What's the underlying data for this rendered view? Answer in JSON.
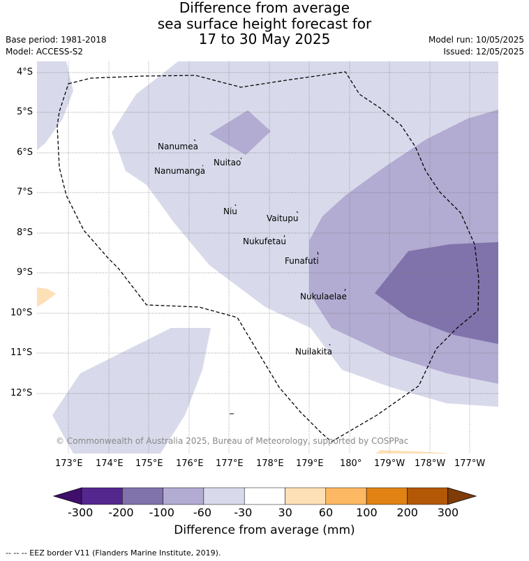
{
  "title": {
    "line1": "Difference from average",
    "line2": "sea surface height forecast for",
    "line3": "17 to 30 May 2025"
  },
  "meta": {
    "base_period": "Base period: 1981-2018",
    "model": "Model: ACCESS-S2",
    "model_run": "Model run: 10/05/2025",
    "issued": "Issued: 12/05/2025"
  },
  "map": {
    "latitude_labels": [
      "4°S",
      "5°S",
      "6°S",
      "7°S",
      "8°S",
      "9°S",
      "10°S",
      "11°S",
      "12°S"
    ],
    "longitude_labels": [
      "173°E",
      "174°E",
      "175°E",
      "176°E",
      "177°E",
      "178°E",
      "179°E",
      "180°",
      "179°W",
      "178°W",
      "177°W"
    ],
    "islands": [
      "Nanumea",
      "Nuitao",
      "Nanumanga",
      "Niu",
      "Vaitupu",
      "Nukufetau",
      "Funafuti",
      "Nukulaelae",
      "Nuilakita"
    ],
    "credit": "© Commonwealth of Australia 2025, Bureau of Meteorology, supported by COSPPac"
  },
  "colorbar": {
    "ticks": [
      "-300",
      "-200",
      "-100",
      "-60",
      "-30",
      "30",
      "60",
      "100",
      "200",
      "300"
    ],
    "colors": [
      "#3f0f6b",
      "#54278f",
      "#8073ac",
      "#b2abd2",
      "#d8daeb",
      "#ffffff",
      "#fee0b6",
      "#fdb863",
      "#e08214",
      "#b35806",
      "#7f3b08"
    ],
    "label": "Difference from average (mm)"
  },
  "footer": {
    "eez_note": "--  --  -- EEZ border V11 (Flanders Marine Institute, 2019)."
  }
}
